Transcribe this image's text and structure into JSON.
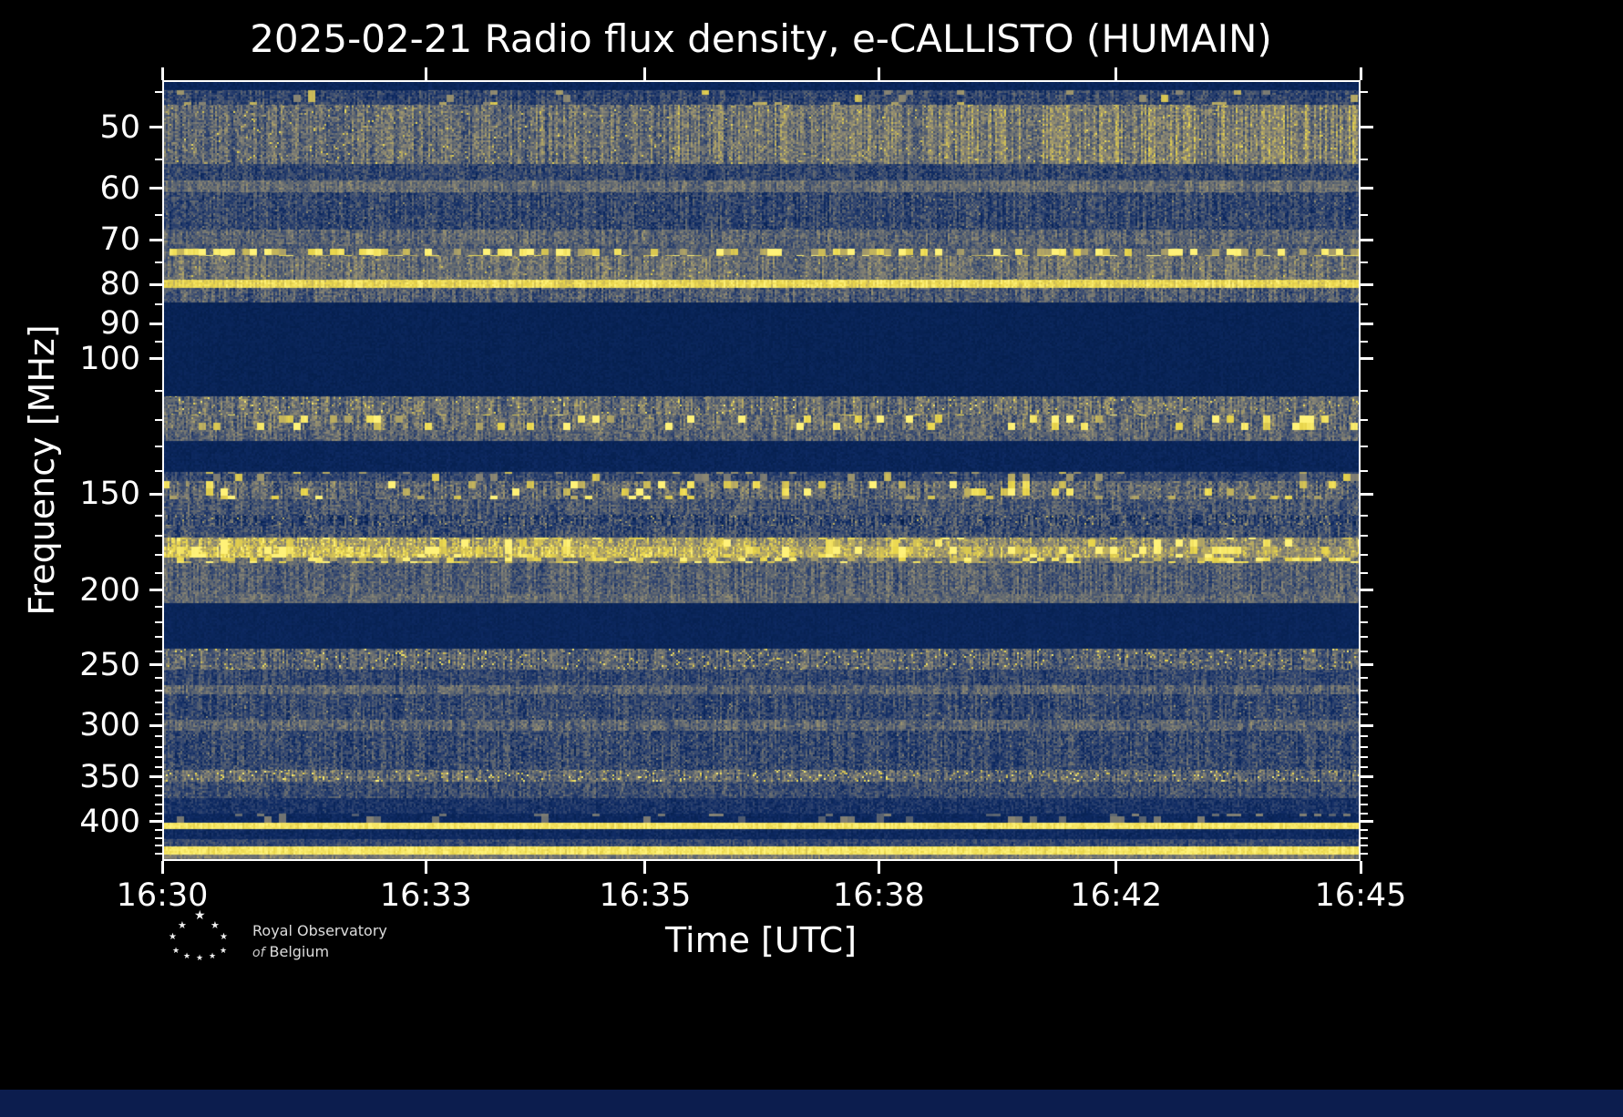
{
  "title": "2025-02-21 Radio flux density, e-CALLISTO (HUMAIN)",
  "colors": {
    "background": "#000000",
    "text": "#ffffff",
    "frame": "#ffffff",
    "bottom_strip": "#0c1d4e"
  },
  "x_axis": {
    "label": "Time [UTC]",
    "ticks": [
      {
        "label": "16:30",
        "pos": 0.0
      },
      {
        "label": "16:33",
        "pos": 0.22
      },
      {
        "label": "16:35",
        "pos": 0.403
      },
      {
        "label": "16:38",
        "pos": 0.598
      },
      {
        "label": "16:42",
        "pos": 0.796
      },
      {
        "label": "16:45",
        "pos": 1.0
      }
    ]
  },
  "y_axis": {
    "label": "Frequency [MHz]",
    "scale": "log",
    "inverted_low_at_top": true,
    "major_ticks": [
      50,
      60,
      70,
      80,
      90,
      100,
      150,
      200,
      250,
      300,
      350,
      400
    ],
    "minor_ticks": [
      45,
      55,
      65,
      75,
      85,
      95,
      110,
      120,
      130,
      140,
      160,
      170,
      180,
      190,
      210,
      220,
      230,
      240,
      260,
      270,
      280,
      290,
      310,
      320,
      330,
      340,
      360,
      370,
      380,
      390,
      410,
      420,
      430,
      440
    ]
  },
  "logo": {
    "line1": "Royal Observatory",
    "line2_prefix": "of",
    "line2": "Belgium",
    "star_glyph": "★"
  },
  "chart_data": {
    "type": "heatmap",
    "title": "2025-02-21 Radio flux density, e-CALLISTO (HUMAIN)",
    "xlabel": "Time [UTC]",
    "ylabel": "Frequency [MHz]",
    "time_range_utc": [
      "16:30",
      "16:45"
    ],
    "freq_range_mhz": [
      43.4,
      450
    ],
    "freq_scale": "log",
    "freq_inverted_low_at_top": true,
    "legend": "none",
    "colormap": {
      "name": "cividis-like (navy to gray to yellow)",
      "stops": [
        {
          "v": 0.0,
          "rgb": [
            2,
            28,
            72
          ]
        },
        {
          "v": 0.15,
          "rgb": [
            14,
            42,
            99
          ]
        },
        {
          "v": 0.3,
          "rgb": [
            50,
            70,
            112
          ]
        },
        {
          "v": 0.45,
          "rgb": [
            94,
            102,
            112
          ]
        },
        {
          "v": 0.6,
          "rgb": [
            134,
            131,
            116
          ]
        },
        {
          "v": 0.75,
          "rgb": [
            180,
            167,
            100
          ]
        },
        {
          "v": 0.88,
          "rgb": [
            232,
            212,
            74
          ]
        },
        {
          "v": 1.0,
          "rgb": [
            255,
            242,
            120
          ]
        }
      ]
    },
    "bands": [
      {
        "f_lo": 43.4,
        "f_hi": 44.7,
        "base": 0.1,
        "noise": 0.05,
        "colvar": 0.1,
        "desc": "dark top edge"
      },
      {
        "f_lo": 44.7,
        "f_hi": 46.7,
        "base": 0.3,
        "noise": 0.14,
        "sp": 0.08,
        "spl": 0.7,
        "dash": true,
        "colvar": 0.3,
        "desc": "speckled transition near 46 MHz"
      },
      {
        "f_lo": 46.7,
        "f_hi": 55.8,
        "base": 0.44,
        "base_end": 0.6,
        "noise": 0.16,
        "sp": 0.035,
        "spl": 0.75,
        "colvar": 0.3,
        "desc": "broad tan band 47-56 MHz, brightening with time"
      },
      {
        "f_lo": 55.8,
        "f_hi": 58.6,
        "base": 0.3,
        "noise": 0.14,
        "colvar": 0.25,
        "desc": "blue noise"
      },
      {
        "f_lo": 58.6,
        "f_hi": 60.6,
        "base": 0.48,
        "noise": 0.12,
        "colvar": 0.2,
        "desc": "light line ~60 MHz"
      },
      {
        "f_lo": 60.6,
        "f_hi": 67.9,
        "base": 0.3,
        "noise": 0.15,
        "sp": 0.012,
        "spl": 0.55,
        "colvar": 0.3,
        "desc": "mottled blue 61-68 MHz"
      },
      {
        "f_lo": 67.9,
        "f_hi": 70.9,
        "base": 0.44,
        "noise": 0.14,
        "colvar": 0.25,
        "desc": "light band ~69 MHz"
      },
      {
        "f_lo": 70.9,
        "f_hi": 71.9,
        "base": 0.4,
        "noise": 0.12,
        "colvar": 0.2,
        "desc": ""
      },
      {
        "f_lo": 71.9,
        "f_hi": 73.5,
        "base": 0.46,
        "noise": 0.1,
        "sp": 0.5,
        "spl": 0.9,
        "dash": true,
        "colvar": 0.2,
        "desc": "dotted bright yellow line ~73 MHz"
      },
      {
        "f_lo": 73.5,
        "f_hi": 78.8,
        "base": 0.5,
        "noise": 0.14,
        "sp": 0.03,
        "spl": 0.7,
        "colvar": 0.25,
        "desc": "tan band 74-79 MHz"
      },
      {
        "f_lo": 78.8,
        "f_hi": 80.8,
        "base": 0.9,
        "noise": 0.06,
        "colvar": 0.08,
        "desc": "solid bright yellow line ~80 MHz"
      },
      {
        "f_lo": 80.8,
        "f_hi": 84.5,
        "base": 0.4,
        "noise": 0.15,
        "colvar": 0.3,
        "desc": "noise below 80 MHz line"
      },
      {
        "f_lo": 84.5,
        "f_hi": 111.9,
        "base": 0.08,
        "noise": 0.04,
        "colvar": 0.1,
        "desc": "dark quiet zone 85-112 MHz"
      },
      {
        "f_lo": 111.9,
        "f_hi": 118.2,
        "base": 0.48,
        "noise": 0.15,
        "sp": 0.05,
        "spl": 0.8,
        "colvar": 0.3,
        "desc": "noisy band 112-118 MHz"
      },
      {
        "f_lo": 118.2,
        "f_hi": 123.8,
        "base": 0.48,
        "noise": 0.15,
        "sp": 0.17,
        "spl": 0.93,
        "dash": true,
        "colvar": 0.3,
        "desc": "airband: dense bright yellow speckles 118-124 MHz"
      },
      {
        "f_lo": 123.8,
        "f_hi": 127.9,
        "base": 0.44,
        "noise": 0.14,
        "colvar": 0.25,
        "desc": ""
      },
      {
        "f_lo": 127.9,
        "f_hi": 140.4,
        "base": 0.1,
        "noise": 0.05,
        "colvar": 0.1,
        "desc": "dark 128-140 MHz"
      },
      {
        "f_lo": 140.4,
        "f_hi": 144.3,
        "base": 0.3,
        "noise": 0.12,
        "sp": 0.13,
        "spl": 0.7,
        "dash": true,
        "colvar": 0.25,
        "desc": "speckled thin lines ~142 MHz"
      },
      {
        "f_lo": 144.3,
        "f_hi": 152.3,
        "base": 0.45,
        "noise": 0.17,
        "sp": 0.15,
        "spl": 0.92,
        "dash": true,
        "colvar": 0.3,
        "desc": "2m band bright speckles 145-152 MHz"
      },
      {
        "f_lo": 152.3,
        "f_hi": 159.6,
        "base": 0.38,
        "noise": 0.15,
        "colvar": 0.25,
        "desc": ""
      },
      {
        "f_lo": 159.6,
        "f_hi": 164.9,
        "base": 0.3,
        "noise": 0.17,
        "sp": 0.06,
        "spl": 0.65,
        "colvar": 0.5,
        "desc": "vertical streaks 160-165 MHz"
      },
      {
        "f_lo": 164.9,
        "f_hi": 170.8,
        "base": 0.34,
        "noise": 0.15,
        "colvar": 0.3,
        "desc": ""
      },
      {
        "f_lo": 170.8,
        "f_hi": 175.6,
        "base": 0.76,
        "base_end": 0.6,
        "noise": 0.15,
        "sp": 0.2,
        "spl": 0.9,
        "dash": true,
        "colvar": 0.2,
        "desc": "bright yellow band ~173 MHz"
      },
      {
        "f_lo": 175.6,
        "f_hi": 181.4,
        "base": 0.85,
        "base_end": 0.68,
        "noise": 0.13,
        "sp": 0.25,
        "spl": 0.95,
        "dash": true,
        "colvar": 0.15,
        "desc": "brightest yellow band ~178 MHz, strongest at left"
      },
      {
        "f_lo": 181.4,
        "f_hi": 184.4,
        "base": 0.5,
        "noise": 0.12,
        "sp": 0.4,
        "spl": 0.85,
        "dash": true,
        "colvar": 0.2,
        "desc": "dotted row ~183 MHz"
      },
      {
        "f_lo": 184.4,
        "f_hi": 202.3,
        "base": 0.42,
        "noise": 0.14,
        "colvar": 0.25,
        "desc": "light gray-blue noise 185-200 MHz"
      },
      {
        "f_lo": 202.3,
        "f_hi": 207.9,
        "base": 0.46,
        "noise": 0.12,
        "colvar": 0.2,
        "desc": "light band ~205 MHz"
      },
      {
        "f_lo": 207.9,
        "f_hi": 238.3,
        "base": 0.1,
        "noise": 0.04,
        "colvar": 0.1,
        "desc": "dark 208-238 MHz"
      },
      {
        "f_lo": 238.3,
        "f_hi": 253.7,
        "base": 0.42,
        "noise": 0.16,
        "sp": 0.06,
        "spl": 0.8,
        "colvar": 0.3,
        "desc": "noisy band ~245-252 MHz"
      },
      {
        "f_lo": 253.7,
        "f_hi": 265.8,
        "base": 0.3,
        "noise": 0.13,
        "colvar": 0.25,
        "desc": ""
      },
      {
        "f_lo": 265.8,
        "f_hi": 273.2,
        "base": 0.44,
        "noise": 0.13,
        "colvar": 0.25,
        "desc": "light band ~270 MHz"
      },
      {
        "f_lo": 273.2,
        "f_hi": 294.8,
        "base": 0.31,
        "noise": 0.14,
        "sp": 0.02,
        "spl": 0.55,
        "colvar": 0.3,
        "desc": ""
      },
      {
        "f_lo": 294.8,
        "f_hi": 304.7,
        "base": 0.44,
        "noise": 0.14,
        "colvar": 0.25,
        "desc": "light band ~300 MHz"
      },
      {
        "f_lo": 304.7,
        "f_hi": 342.6,
        "base": 0.31,
        "noise": 0.15,
        "sp": 0.02,
        "spl": 0.5,
        "colvar": 0.3,
        "desc": ""
      },
      {
        "f_lo": 342.6,
        "f_hi": 355.0,
        "base": 0.48,
        "base_end": 0.42,
        "noise": 0.16,
        "sp": 0.07,
        "spl": 0.85,
        "colvar": 0.3,
        "desc": "speckled band ~350 MHz"
      },
      {
        "f_lo": 355.0,
        "f_hi": 372.8,
        "base": 0.33,
        "noise": 0.14,
        "colvar": 0.25,
        "desc": ""
      },
      {
        "f_lo": 372.8,
        "f_hi": 390.6,
        "base": 0.2,
        "noise": 0.1,
        "colvar": 0.2,
        "desc": ""
      },
      {
        "f_lo": 390.6,
        "f_hi": 401.3,
        "base": 0.13,
        "noise": 0.06,
        "sp": 0.15,
        "spl": 0.5,
        "dash": true,
        "colvar": 0.15,
        "desc": "dark with faint dotted line ~397 MHz"
      },
      {
        "f_lo": 401.3,
        "f_hi": 409.1,
        "base": 0.95,
        "noise": 0.04,
        "colvar": 0.05,
        "desc": "solid bright yellow line ~405 MHz"
      },
      {
        "f_lo": 409.1,
        "f_hi": 421.6,
        "base": 0.14,
        "noise": 0.07,
        "colvar": 0.15,
        "desc": ""
      },
      {
        "f_lo": 421.6,
        "f_hi": 430.8,
        "base": 0.3,
        "noise": 0.1,
        "colvar": 0.2,
        "desc": ""
      },
      {
        "f_lo": 430.8,
        "f_hi": 441.5,
        "base": 0.95,
        "noise": 0.05,
        "colvar": 0.05,
        "desc": "bright white-yellow band ~435 MHz"
      },
      {
        "f_lo": 441.5,
        "f_hi": 450.0,
        "base": 0.55,
        "noise": 0.08,
        "colvar": 0.15,
        "desc": "light gray bottom edge"
      }
    ]
  }
}
